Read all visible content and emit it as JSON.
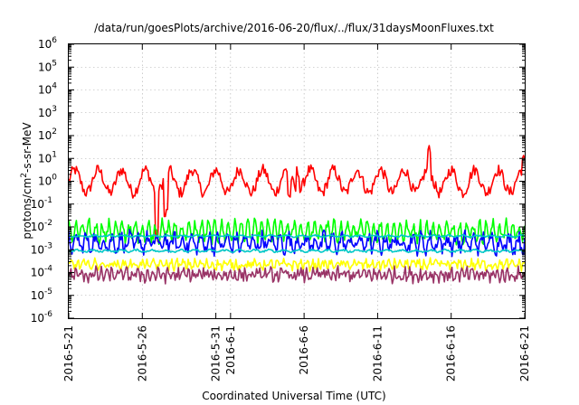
{
  "chart_data": {
    "type": "line",
    "title": "/data/run/goesPlots/archive/2016-06-20/flux/../flux/31daysMoonFluxes.txt",
    "xlabel": "Coordinated Universal Time (UTC)",
    "ylabel_prefix": "protons/cm",
    "ylabel_sup": "2",
    "ylabel_suffix": "-s-sr-MeV",
    "yscale": "log",
    "ylim_exp": [
      -6,
      6
    ],
    "y_ticks": [
      {
        "base": "10",
        "exp": "6"
      },
      {
        "base": "10",
        "exp": "5"
      },
      {
        "base": "10",
        "exp": "4"
      },
      {
        "base": "10",
        "exp": "3"
      },
      {
        "base": "10",
        "exp": "2"
      },
      {
        "base": "10",
        "exp": "1"
      },
      {
        "base": "10",
        "exp": "0"
      },
      {
        "base": "10",
        "exp": "-1"
      },
      {
        "base": "10",
        "exp": "-2"
      },
      {
        "base": "10",
        "exp": "-3"
      },
      {
        "base": "10",
        "exp": "-4"
      },
      {
        "base": "10",
        "exp": "-5"
      },
      {
        "base": "10",
        "exp": "-6"
      }
    ],
    "x_range": [
      "2016-5-21",
      "2016-6-21"
    ],
    "x_ticks": [
      {
        "label": "2016-5-21",
        "day": 0
      },
      {
        "label": "2016-5-26",
        "day": 5
      },
      {
        "label": "2016-5-31",
        "day": 10
      },
      {
        "label": "2016-6-1",
        "day": 11
      },
      {
        "label": "2016-6-6",
        "day": 16
      },
      {
        "label": "2016-6-11",
        "day": 21
      },
      {
        "label": "2016-6-16",
        "day": 26
      },
      {
        "label": "2016-6-21",
        "day": 31
      }
    ],
    "grid": true,
    "series": [
      {
        "color": "#ff0000",
        "base_log": 0.0,
        "amp": 0.5,
        "noise": 0.25,
        "period_days": 1.6,
        "dips": [
          {
            "day": 6.0,
            "depth": 2.0
          },
          {
            "day": 6.6,
            "depth": 1.8
          },
          {
            "day": 15.0,
            "depth": 1.0
          }
        ],
        "spikes": [
          {
            "day": 15.6,
            "height": 0.9
          },
          {
            "day": 24.5,
            "height": 0.9
          },
          {
            "day": 30.9,
            "height": 0.5
          }
        ]
      },
      {
        "color": "#00ff00",
        "base_log": -2.2,
        "amp": 0.35,
        "noise": 0.25,
        "period_days": 0.45,
        "dips": [],
        "spikes": []
      },
      {
        "color": "#0000ff",
        "base_log": -2.7,
        "amp": 0.3,
        "noise": 0.3,
        "period_days": 0.6,
        "dips": [],
        "spikes": []
      },
      {
        "color": "#00c8c8",
        "base_log": -2.4,
        "amp": 0.03,
        "noise": 0.03,
        "period_days": 1.0,
        "dips": [],
        "spikes": []
      },
      {
        "color": "#00c8c8",
        "base_log": -3.05,
        "amp": 0.04,
        "noise": 0.04,
        "period_days": 1.0,
        "dips": [],
        "spikes": []
      },
      {
        "color": "#ffff00",
        "base_log": -3.65,
        "amp": 0.12,
        "noise": 0.18,
        "period_days": 0.4,
        "dips": [],
        "spikes": []
      },
      {
        "color": "#993366",
        "base_log": -4.1,
        "amp": 0.15,
        "noise": 0.25,
        "period_days": 0.35,
        "dips": [],
        "spikes": []
      }
    ]
  }
}
